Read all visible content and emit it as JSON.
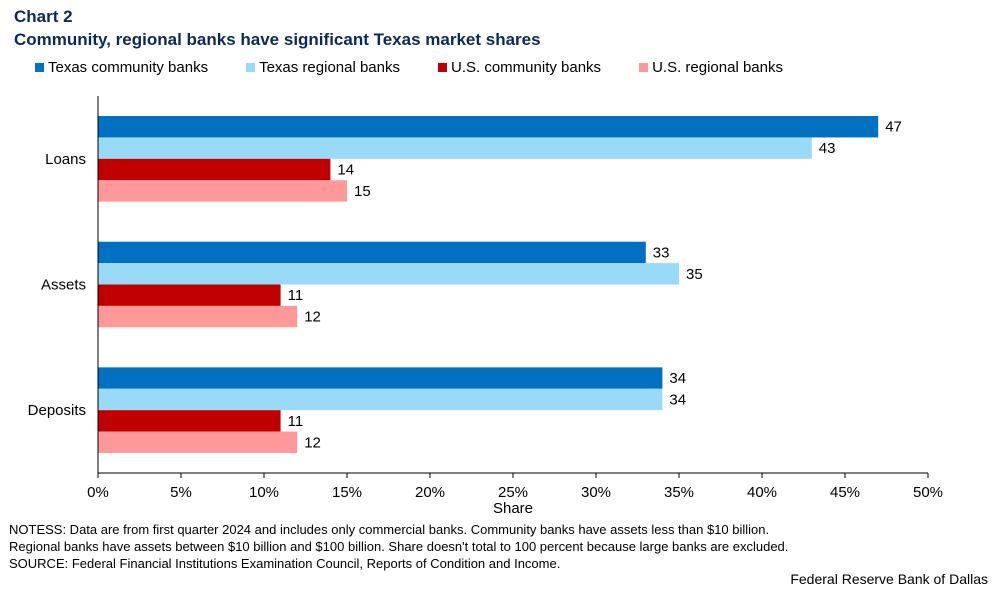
{
  "header": {
    "chart_number": "Chart 2",
    "title": "Community, regional banks have significant Texas market shares"
  },
  "chart_data": {
    "type": "bar",
    "orientation": "horizontal",
    "title": "Community, regional banks have significant Texas market shares",
    "xlabel": "Share",
    "ylabel": "",
    "xlim": [
      0,
      50
    ],
    "x_tick_labels": [
      "0%",
      "5%",
      "10%",
      "15%",
      "20%",
      "25%",
      "30%",
      "35%",
      "40%",
      "45%",
      "50%"
    ],
    "categories": [
      "Loans",
      "Assets",
      "Deposits"
    ],
    "series": [
      {
        "name": "Texas community banks",
        "color": "#0070c0",
        "values": [
          47,
          33,
          34
        ]
      },
      {
        "name": "Texas regional banks",
        "color": "#99dbf7",
        "values": [
          43,
          35,
          34
        ]
      },
      {
        "name": "U.S. community banks",
        "color": "#c00000",
        "values": [
          14,
          11,
          11
        ]
      },
      {
        "name": "U.S. regional banks",
        "color": "#ff9999",
        "values": [
          15,
          12,
          12
        ]
      }
    ],
    "data_label_values": [
      [
        47,
        33,
        34
      ],
      [
        43,
        35,
        34
      ],
      [
        14,
        11,
        11
      ],
      [
        15,
        12,
        12
      ]
    ],
    "legend_position": "top-left",
    "grid": false
  },
  "footer": {
    "notes_lines": [
      "NOTESS: Data are from first quarter 2024 and includes only commercial banks. Community banks have assets less than $10 billion.",
      "Regional banks have assets between $10 billion and $100 billion. Share doesn't total to 100 percent because large banks are excluded.",
      "SOURCE: Federal Financial Institutions Examination Council, Reports of Condition and Income."
    ],
    "credit": "Federal Reserve Bank of Dallas"
  }
}
